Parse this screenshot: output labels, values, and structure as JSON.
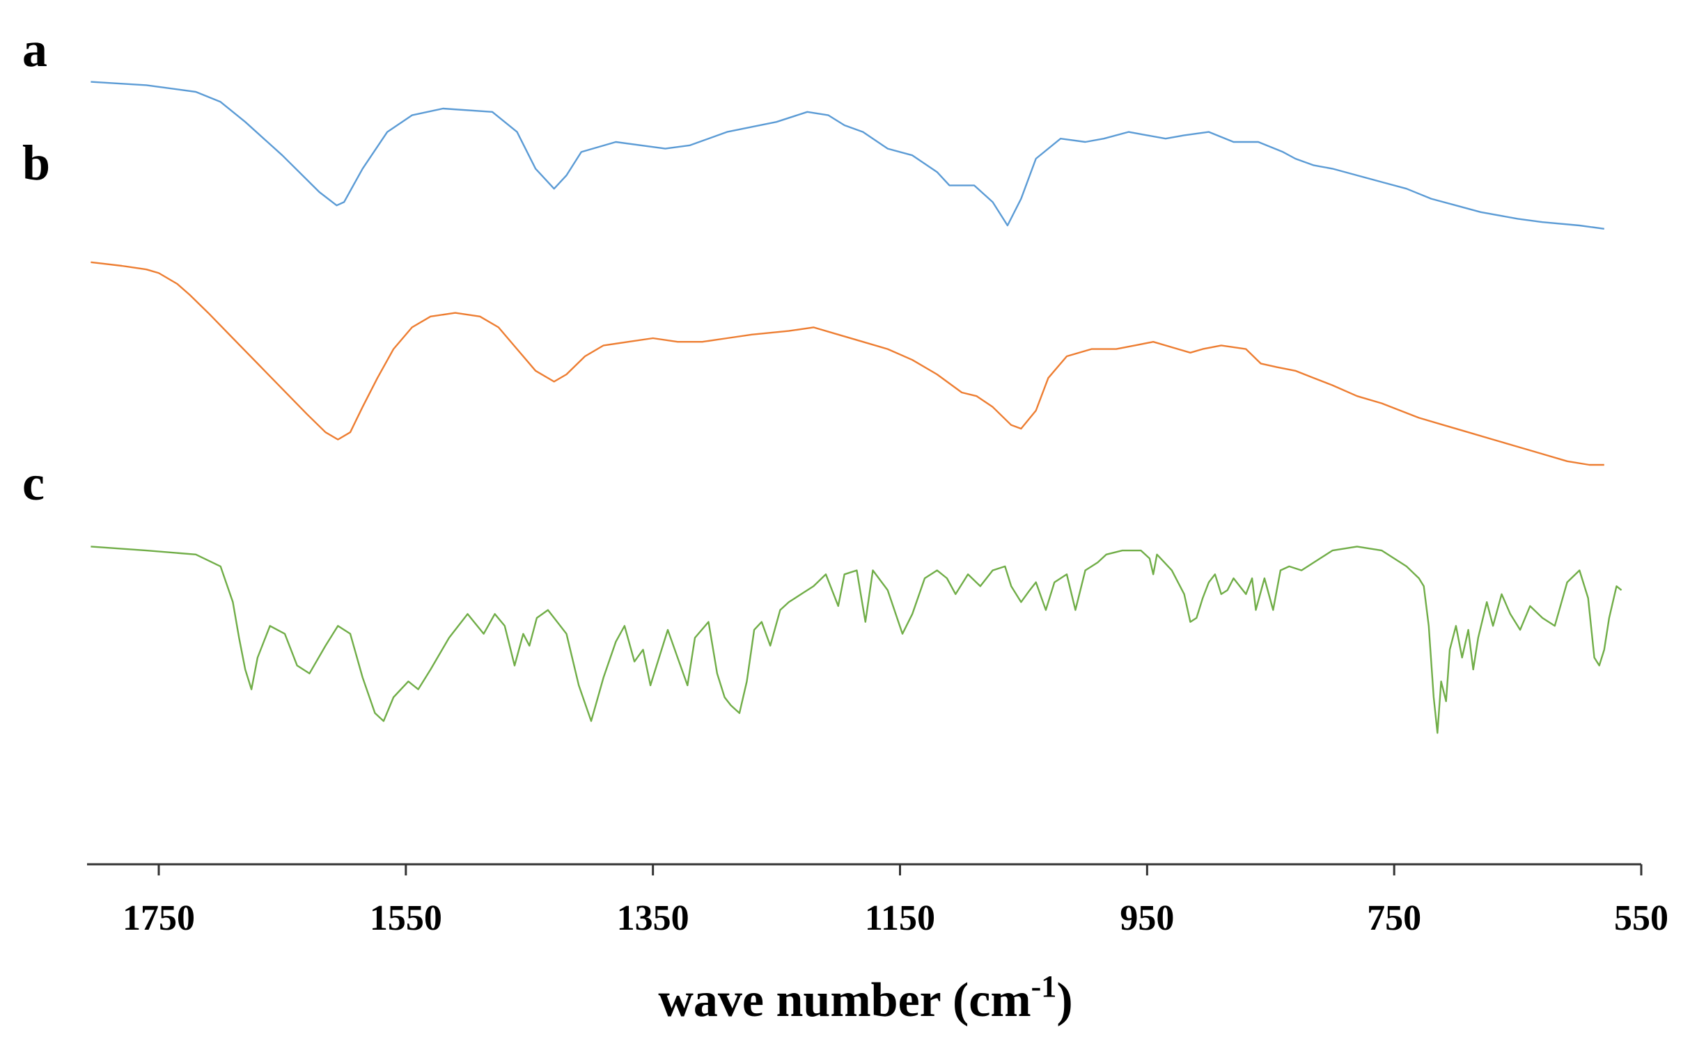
{
  "chart_data": {
    "type": "line",
    "title": "",
    "xlabel": "wave number (cm",
    "xlabel_sup": "-1",
    "xlabel_close": ")",
    "ylabel": "",
    "x_reversed": true,
    "xlim": [
      1807,
      550
    ],
    "x_ticks": [
      1750,
      1550,
      1350,
      1150,
      950,
      750,
      550
    ],
    "x_tick_labels": [
      "1750",
      "1550",
      "1350",
      "1150",
      "950",
      "750",
      "550"
    ],
    "y_axis_visible": false,
    "ylim": [
      0,
      100
    ],
    "series": [
      {
        "name": "a",
        "color": "#5b9bd5",
        "points": [
          [
            1805,
            88
          ],
          [
            1760,
            87
          ],
          [
            1720,
            85
          ],
          [
            1700,
            82
          ],
          [
            1680,
            76
          ],
          [
            1650,
            66
          ],
          [
            1620,
            55
          ],
          [
            1606,
            51
          ],
          [
            1600,
            52
          ],
          [
            1585,
            62
          ],
          [
            1565,
            73
          ],
          [
            1545,
            78
          ],
          [
            1520,
            80
          ],
          [
            1480,
            79
          ],
          [
            1460,
            73
          ],
          [
            1445,
            62
          ],
          [
            1430,
            56
          ],
          [
            1420,
            60
          ],
          [
            1408,
            67
          ],
          [
            1380,
            70
          ],
          [
            1340,
            68
          ],
          [
            1320,
            69
          ],
          [
            1290,
            73
          ],
          [
            1250,
            76
          ],
          [
            1225,
            79
          ],
          [
            1208,
            78
          ],
          [
            1195,
            75
          ],
          [
            1180,
            73
          ],
          [
            1160,
            68
          ],
          [
            1140,
            66
          ],
          [
            1120,
            61
          ],
          [
            1110,
            57
          ],
          [
            1090,
            57
          ],
          [
            1075,
            52
          ],
          [
            1063,
            45
          ],
          [
            1052,
            53
          ],
          [
            1040,
            65
          ],
          [
            1020,
            71
          ],
          [
            1000,
            70
          ],
          [
            985,
            71
          ],
          [
            965,
            73
          ],
          [
            950,
            72
          ],
          [
            935,
            71
          ],
          [
            920,
            72
          ],
          [
            900,
            73
          ],
          [
            880,
            70
          ],
          [
            860,
            70
          ],
          [
            840,
            67
          ],
          [
            830,
            65
          ],
          [
            815,
            63
          ],
          [
            800,
            62
          ],
          [
            780,
            60
          ],
          [
            760,
            58
          ],
          [
            740,
            56
          ],
          [
            720,
            53
          ],
          [
            700,
            51
          ],
          [
            680,
            49
          ],
          [
            650,
            47
          ],
          [
            630,
            46
          ],
          [
            600,
            45
          ],
          [
            580,
            44
          ]
        ]
      },
      {
        "name": "b",
        "color": "#ed7d31",
        "points": [
          [
            1805,
            66
          ],
          [
            1780,
            65
          ],
          [
            1760,
            64
          ],
          [
            1750,
            63
          ],
          [
            1735,
            60
          ],
          [
            1725,
            57
          ],
          [
            1710,
            52
          ],
          [
            1690,
            45
          ],
          [
            1670,
            38
          ],
          [
            1650,
            31
          ],
          [
            1630,
            24
          ],
          [
            1615,
            19
          ],
          [
            1605,
            17
          ],
          [
            1595,
            19
          ],
          [
            1585,
            26
          ],
          [
            1573,
            34
          ],
          [
            1560,
            42
          ],
          [
            1545,
            48
          ],
          [
            1530,
            51
          ],
          [
            1510,
            52
          ],
          [
            1490,
            51
          ],
          [
            1475,
            48
          ],
          [
            1460,
            42
          ],
          [
            1445,
            36
          ],
          [
            1430,
            33
          ],
          [
            1420,
            35
          ],
          [
            1405,
            40
          ],
          [
            1390,
            43
          ],
          [
            1370,
            44
          ],
          [
            1350,
            45
          ],
          [
            1330,
            44
          ],
          [
            1310,
            44
          ],
          [
            1290,
            45
          ],
          [
            1270,
            46
          ],
          [
            1240,
            47
          ],
          [
            1220,
            48
          ],
          [
            1200,
            46
          ],
          [
            1180,
            44
          ],
          [
            1160,
            42
          ],
          [
            1140,
            39
          ],
          [
            1120,
            35
          ],
          [
            1100,
            30
          ],
          [
            1088,
            29
          ],
          [
            1075,
            26
          ],
          [
            1060,
            21
          ],
          [
            1052,
            20
          ],
          [
            1040,
            25
          ],
          [
            1030,
            34
          ],
          [
            1015,
            40
          ],
          [
            995,
            42
          ],
          [
            975,
            42
          ],
          [
            960,
            43
          ],
          [
            945,
            44
          ],
          [
            925,
            42
          ],
          [
            915,
            41
          ],
          [
            905,
            42
          ],
          [
            890,
            43
          ],
          [
            870,
            42
          ],
          [
            858,
            38
          ],
          [
            845,
            37
          ],
          [
            830,
            36
          ],
          [
            815,
            34
          ],
          [
            800,
            32
          ],
          [
            780,
            29
          ],
          [
            760,
            27
          ],
          [
            745,
            25
          ],
          [
            730,
            23
          ],
          [
            710,
            21
          ],
          [
            690,
            19
          ],
          [
            670,
            17
          ],
          [
            650,
            15
          ],
          [
            630,
            13
          ],
          [
            610,
            11
          ],
          [
            592,
            10
          ],
          [
            580,
            10
          ]
        ]
      },
      {
        "name": "c",
        "color": "#70ad47",
        "points": [
          [
            1805,
            78
          ],
          [
            1760,
            77
          ],
          [
            1720,
            76
          ],
          [
            1700,
            73
          ],
          [
            1690,
            64
          ],
          [
            1685,
            55
          ],
          [
            1680,
            47
          ],
          [
            1675,
            42
          ],
          [
            1670,
            50
          ],
          [
            1660,
            58
          ],
          [
            1648,
            56
          ],
          [
            1638,
            48
          ],
          [
            1628,
            46
          ],
          [
            1615,
            53
          ],
          [
            1605,
            58
          ],
          [
            1595,
            56
          ],
          [
            1585,
            45
          ],
          [
            1575,
            36
          ],
          [
            1568,
            34
          ],
          [
            1560,
            40
          ],
          [
            1548,
            44
          ],
          [
            1540,
            42
          ],
          [
            1530,
            47
          ],
          [
            1515,
            55
          ],
          [
            1500,
            61
          ],
          [
            1487,
            56
          ],
          [
            1478,
            61
          ],
          [
            1470,
            58
          ],
          [
            1462,
            48
          ],
          [
            1455,
            56
          ],
          [
            1450,
            53
          ],
          [
            1444,
            60
          ],
          [
            1435,
            62
          ],
          [
            1420,
            56
          ],
          [
            1410,
            43
          ],
          [
            1400,
            34
          ],
          [
            1390,
            45
          ],
          [
            1380,
            54
          ],
          [
            1373,
            58
          ],
          [
            1365,
            49
          ],
          [
            1358,
            52
          ],
          [
            1352,
            43
          ],
          [
            1345,
            50
          ],
          [
            1338,
            57
          ],
          [
            1330,
            50
          ],
          [
            1322,
            43
          ],
          [
            1316,
            55
          ],
          [
            1305,
            59
          ],
          [
            1298,
            46
          ],
          [
            1292,
            40
          ],
          [
            1287,
            38
          ],
          [
            1280,
            36
          ],
          [
            1274,
            44
          ],
          [
            1268,
            57
          ],
          [
            1262,
            59
          ],
          [
            1255,
            53
          ],
          [
            1247,
            62
          ],
          [
            1240,
            64
          ],
          [
            1230,
            66
          ],
          [
            1220,
            68
          ],
          [
            1210,
            71
          ],
          [
            1200,
            63
          ],
          [
            1195,
            71
          ],
          [
            1185,
            72
          ],
          [
            1178,
            59
          ],
          [
            1172,
            72
          ],
          [
            1160,
            67
          ],
          [
            1148,
            56
          ],
          [
            1140,
            61
          ],
          [
            1130,
            70
          ],
          [
            1120,
            72
          ],
          [
            1112,
            70
          ],
          [
            1105,
            66
          ],
          [
            1095,
            71
          ],
          [
            1085,
            68
          ],
          [
            1075,
            72
          ],
          [
            1065,
            73
          ],
          [
            1060,
            68
          ],
          [
            1052,
            64
          ],
          [
            1045,
            67
          ],
          [
            1040,
            69
          ],
          [
            1032,
            62
          ],
          [
            1025,
            69
          ],
          [
            1015,
            71
          ],
          [
            1008,
            62
          ],
          [
            1000,
            72
          ],
          [
            990,
            74
          ],
          [
            983,
            76
          ],
          [
            970,
            77
          ],
          [
            955,
            77
          ],
          [
            948,
            75
          ],
          [
            945,
            71
          ],
          [
            942,
            76
          ],
          [
            936,
            74
          ],
          [
            930,
            72
          ],
          [
            920,
            66
          ],
          [
            915,
            59
          ],
          [
            910,
            60
          ],
          [
            905,
            65
          ],
          [
            900,
            69
          ],
          [
            895,
            71
          ],
          [
            890,
            66
          ],
          [
            885,
            67
          ],
          [
            880,
            70
          ],
          [
            875,
            68
          ],
          [
            870,
            66
          ],
          [
            865,
            70
          ],
          [
            862,
            62
          ],
          [
            855,
            70
          ],
          [
            848,
            62
          ],
          [
            842,
            72
          ],
          [
            835,
            73
          ],
          [
            825,
            72
          ],
          [
            810,
            75
          ],
          [
            800,
            77
          ],
          [
            780,
            78
          ],
          [
            760,
            77
          ],
          [
            740,
            73
          ],
          [
            730,
            70
          ],
          [
            726,
            68
          ],
          [
            722,
            58
          ],
          [
            718,
            40
          ],
          [
            715,
            31
          ],
          [
            712,
            44
          ],
          [
            708,
            39
          ],
          [
            705,
            52
          ],
          [
            700,
            58
          ],
          [
            695,
            50
          ],
          [
            690,
            57
          ],
          [
            686,
            47
          ],
          [
            682,
            55
          ],
          [
            675,
            64
          ],
          [
            670,
            58
          ],
          [
            663,
            66
          ],
          [
            656,
            61
          ],
          [
            648,
            57
          ],
          [
            640,
            63
          ],
          [
            630,
            60
          ],
          [
            620,
            58
          ],
          [
            610,
            69
          ],
          [
            600,
            72
          ],
          [
            593,
            65
          ],
          [
            588,
            50
          ],
          [
            584,
            48
          ],
          [
            580,
            52
          ],
          [
            576,
            60
          ],
          [
            570,
            68
          ],
          [
            566,
            67
          ]
        ]
      }
    ]
  }
}
